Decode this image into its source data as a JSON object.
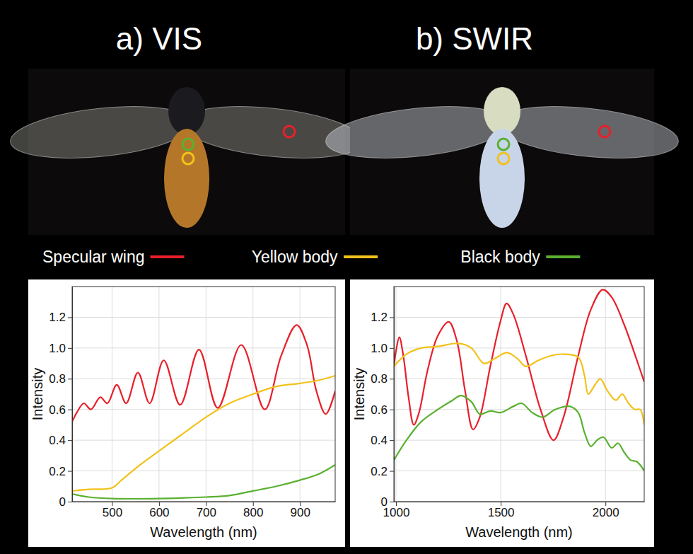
{
  "chart_data": [
    {
      "type": "line",
      "title": "a) VIS",
      "x_label": "Wavelength (nm)",
      "y_label": "Intensity",
      "xlim": [
        415,
        975
      ],
      "xticks": [
        500,
        600,
        700,
        800,
        900
      ],
      "ylim": [
        0,
        1.4
      ],
      "yticks": [
        0,
        0.2,
        0.4,
        0.6,
        0.8,
        {
          "value": 1,
          "label": "1.0"
        },
        1.2
      ],
      "grid": true,
      "legend": "top",
      "series": [
        {
          "name": "Specular wing",
          "color": "#e8202a",
          "x": [
            415,
            425,
            440,
            455,
            475,
            490,
            510,
            530,
            555,
            580,
            610,
            645,
            685,
            725,
            775,
            825,
            860,
            893,
            915,
            935,
            955,
            975
          ],
          "values": [
            0.52,
            0.58,
            0.64,
            0.6,
            0.68,
            0.64,
            0.76,
            0.64,
            0.84,
            0.64,
            0.92,
            0.63,
            0.99,
            0.61,
            1.02,
            0.6,
            0.95,
            1.15,
            1.02,
            0.72,
            0.57,
            0.72
          ]
        },
        {
          "name": "Yellow body",
          "color": "#f2c21b",
          "x": [
            415,
            450,
            500,
            520,
            560,
            600,
            650,
            700,
            750,
            800,
            850,
            900,
            940,
            975
          ],
          "values": [
            0.07,
            0.08,
            0.09,
            0.14,
            0.24,
            0.33,
            0.44,
            0.55,
            0.64,
            0.7,
            0.75,
            0.77,
            0.79,
            0.82
          ]
        },
        {
          "name": "Black body",
          "color": "#5ab030",
          "x": [
            415,
            450,
            500,
            600,
            700,
            750,
            800,
            850,
            900,
            940,
            975
          ],
          "values": [
            0.05,
            0.03,
            0.02,
            0.02,
            0.03,
            0.04,
            0.07,
            0.1,
            0.14,
            0.18,
            0.24
          ]
        }
      ]
    },
    {
      "type": "line",
      "title": "b) SWIR",
      "x_label": "Wavelength (nm)",
      "y_label": "Intensity",
      "xlim": [
        990,
        2185
      ],
      "xticks": [
        1000,
        1500,
        2000
      ],
      "ylim": [
        0,
        1.4
      ],
      "yticks": [
        0,
        0.2,
        0.4,
        0.6,
        0.8,
        {
          "value": 1,
          "label": "1.0"
        },
        1.2
      ],
      "grid": true,
      "series": [
        {
          "color": "#e8202a",
          "x": [
            990,
            1000,
            1016,
            1035,
            1060,
            1085,
            1110,
            1150,
            1200,
            1252,
            1290,
            1330,
            1368,
            1400,
            1450,
            1500,
            1528,
            1560,
            1620,
            1690,
            1752,
            1800,
            1870,
            1930,
            1987,
            2030,
            2090,
            2150,
            2185
          ],
          "values": [
            0.88,
            0.98,
            1.07,
            0.95,
            0.68,
            0.5,
            0.58,
            0.85,
            1.08,
            1.17,
            1.05,
            0.72,
            0.47,
            0.55,
            0.88,
            1.18,
            1.29,
            1.22,
            0.95,
            0.6,
            0.4,
            0.55,
            0.95,
            1.25,
            1.38,
            1.33,
            1.15,
            0.92,
            0.78
          ]
        },
        {
          "color": "#f2c21b",
          "x": [
            990,
            1050,
            1120,
            1200,
            1300,
            1360,
            1420,
            1470,
            1530,
            1580,
            1620,
            1680,
            1740,
            1800,
            1870,
            1900,
            1918,
            1950,
            1975,
            2010,
            2050,
            2080,
            2110,
            2140,
            2165,
            2185
          ],
          "values": [
            0.88,
            0.96,
            1.0,
            1.01,
            1.03,
            1.0,
            0.9,
            0.93,
            0.97,
            0.93,
            0.88,
            0.92,
            0.95,
            0.96,
            0.94,
            0.82,
            0.7,
            0.76,
            0.8,
            0.72,
            0.66,
            0.7,
            0.64,
            0.6,
            0.6,
            0.5
          ]
        },
        {
          "color": "#5ab030",
          "x": [
            990,
            1050,
            1120,
            1200,
            1270,
            1310,
            1360,
            1400,
            1450,
            1500,
            1560,
            1600,
            1650,
            1700,
            1760,
            1830,
            1870,
            1900,
            1930,
            1960,
            1990,
            2030,
            2060,
            2090,
            2120,
            2150,
            2185
          ],
          "values": [
            0.27,
            0.4,
            0.52,
            0.6,
            0.66,
            0.69,
            0.65,
            0.57,
            0.59,
            0.58,
            0.62,
            0.64,
            0.58,
            0.55,
            0.6,
            0.62,
            0.58,
            0.45,
            0.36,
            0.4,
            0.42,
            0.35,
            0.38,
            0.32,
            0.27,
            0.26,
            0.2
          ]
        }
      ]
    }
  ]
}
